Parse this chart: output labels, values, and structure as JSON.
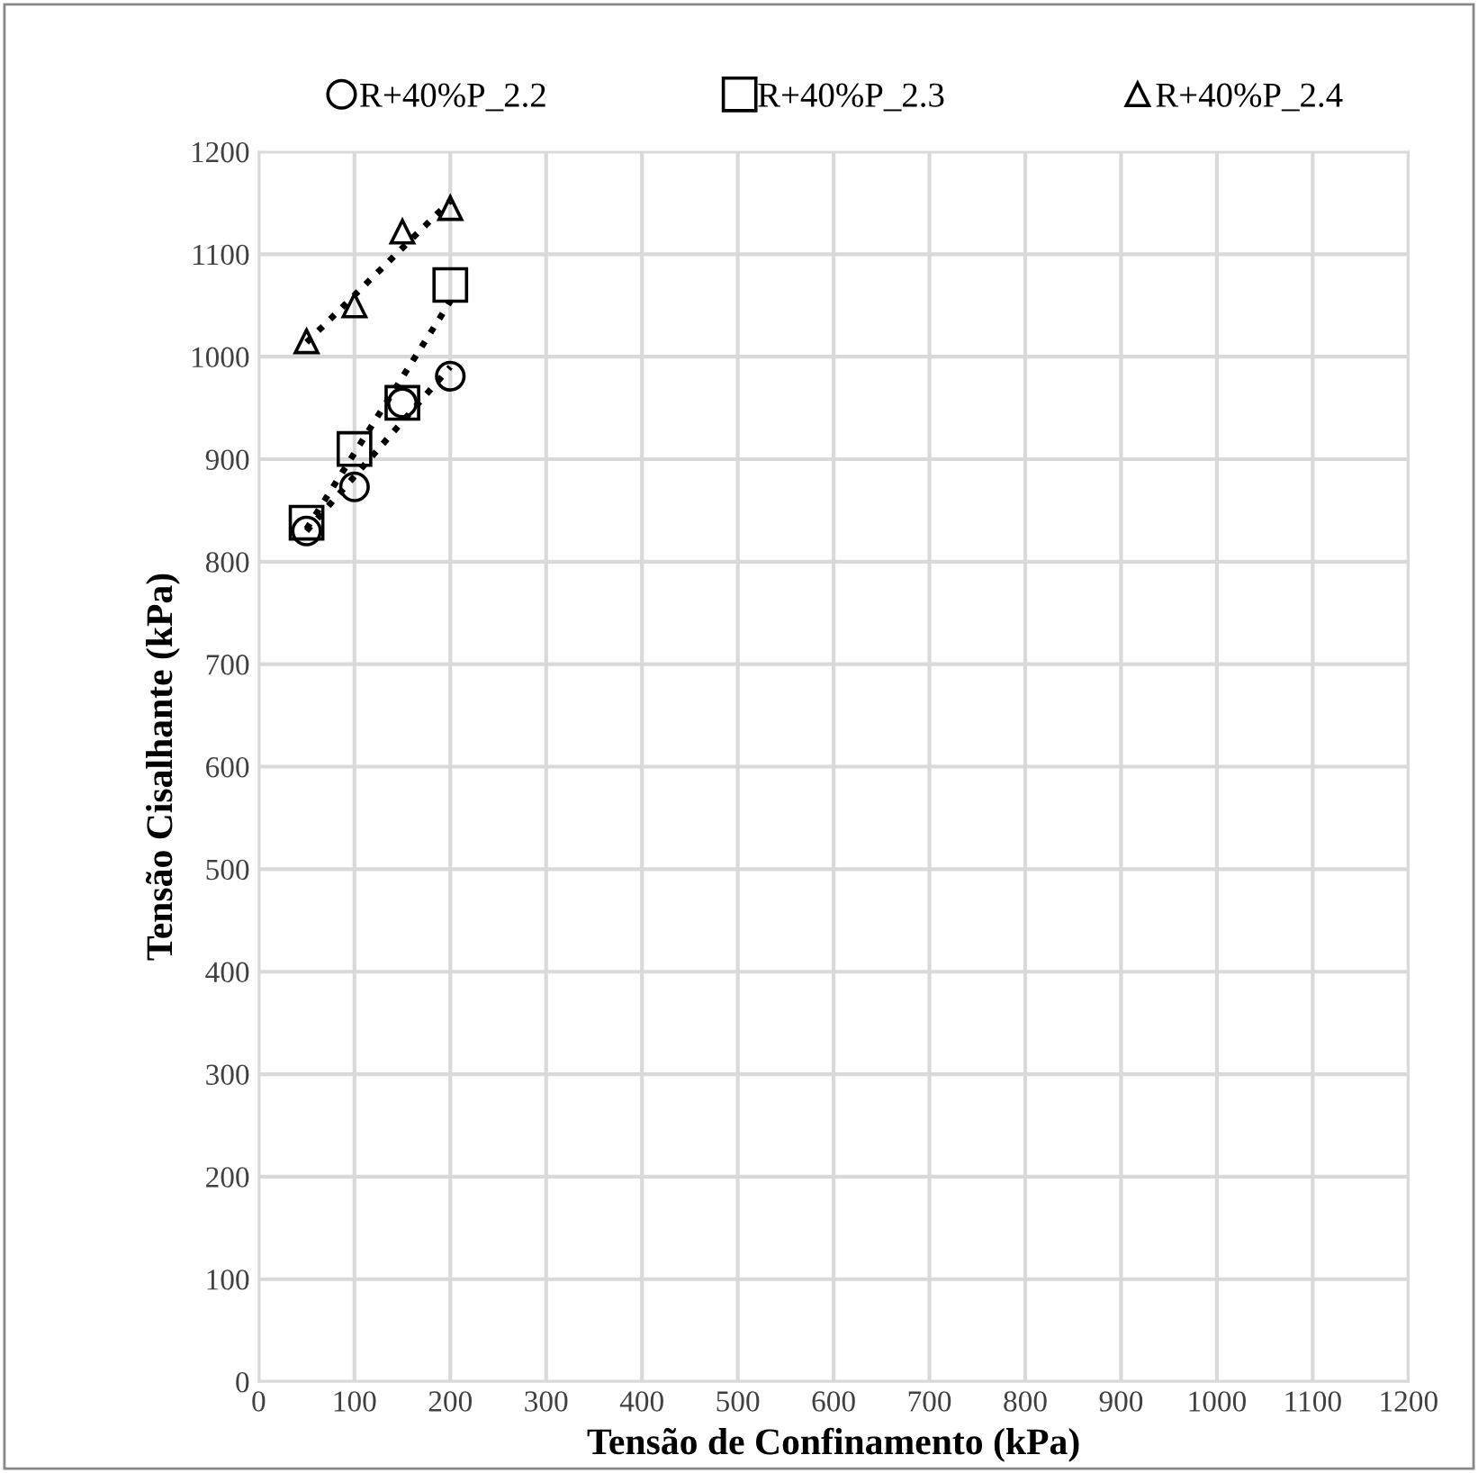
{
  "chart_data": {
    "type": "scatter",
    "xlabel": "Tensão de Confinamento (kPa)",
    "ylabel": "Tensão Cisalhante (kPa)",
    "xlim": [
      0,
      1200
    ],
    "xticks": [
      0,
      100,
      200,
      300,
      400,
      500,
      600,
      700,
      800,
      900,
      1000,
      1100,
      1200
    ],
    "ylim": [
      0,
      1200
    ],
    "yticks": [
      0,
      100,
      200,
      300,
      400,
      500,
      600,
      700,
      800,
      900,
      1000,
      1100,
      1200
    ],
    "grid": true,
    "legend": "top",
    "series": [
      {
        "name": "R+40%P_2.2",
        "color": "#000000",
        "marker": "circle",
        "x": [
          50,
          100,
          150,
          200
        ],
        "values": [
          830,
          873,
          955,
          981
        ]
      },
      {
        "name": "R+40%P_2.3",
        "color": "#000000",
        "marker": "square",
        "x": [
          50,
          100,
          150,
          200
        ],
        "values": [
          838,
          910,
          955,
          1070
        ]
      },
      {
        "name": "R+40%P_2.4",
        "color": "#000000",
        "marker": "triangle",
        "x": [
          50,
          100,
          150,
          200
        ],
        "values": [
          1015,
          1050,
          1122,
          1145
        ]
      },
      {
        "type": "line",
        "color": "#000000",
        "line_style": "dotted",
        "marker": "none",
        "x": [
          50,
          200
        ],
        "values": [
          830,
          990
        ]
      },
      {
        "type": "line",
        "color": "#000000",
        "line_style": "dotted",
        "marker": "none",
        "x": [
          50,
          200
        ],
        "values": [
          832,
          1054
        ]
      },
      {
        "type": "line",
        "color": "#000000",
        "line_style": "dotted",
        "marker": "none",
        "x": [
          50,
          200
        ],
        "values": [
          1014,
          1152
        ]
      }
    ]
  }
}
